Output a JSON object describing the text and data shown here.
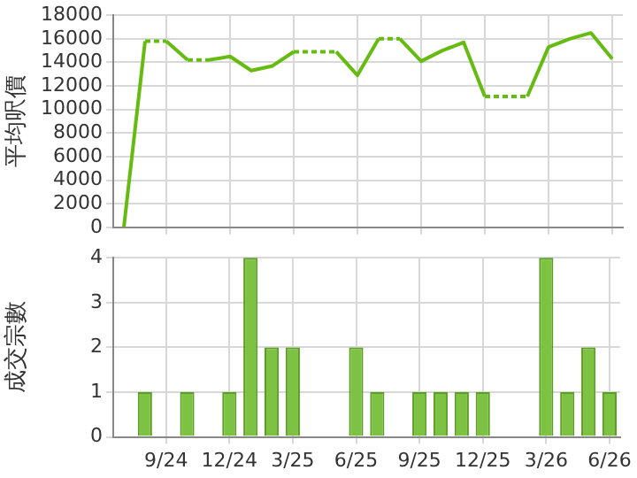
{
  "chart_data": [
    {
      "type": "line",
      "ylabel": "平均呎價",
      "categories": [
        null,
        null,
        null,
        null,
        null,
        null,
        null,
        null,
        null,
        null,
        null,
        null,
        null,
        null,
        null,
        null,
        null,
        null,
        null,
        null,
        null,
        null,
        null,
        null
      ],
      "series": [
        {
          "color": "#66bb11",
          "values": [
            0,
            15800,
            15800,
            14200,
            14200,
            14500,
            13300,
            13700,
            14900,
            14900,
            14900,
            12900,
            16000,
            16000,
            14100,
            15000,
            15700,
            11100,
            11100,
            11100,
            15300,
            16000,
            16500,
            14300
          ]
        }
      ],
      "ylim": [
        0,
        18000
      ],
      "yticks": [
        0,
        2000,
        4000,
        6000,
        8000,
        10000,
        12000,
        14000,
        16000,
        18000
      ],
      "grid": true,
      "marker": "none",
      "tick_labels": "y"
    },
    {
      "type": "bar",
      "ylabel": "成交宗數",
      "categories": [
        null,
        null,
        "9/24",
        null,
        null,
        "12/24",
        null,
        null,
        "3/25",
        null,
        null,
        "6/25",
        null,
        null,
        "9/25",
        null,
        null,
        "12/25",
        null,
        null,
        "3/26",
        null,
        null,
        "6/26"
      ],
      "values": [
        0,
        1,
        0,
        1,
        0,
        1,
        4,
        2,
        2,
        0,
        0,
        2,
        1,
        0,
        1,
        1,
        1,
        1,
        0,
        0,
        4,
        1,
        2,
        1
      ],
      "color": "#7dc242",
      "ylim": [
        0,
        4
      ],
      "yticks": [
        0,
        1,
        2,
        3,
        4
      ],
      "grid": true
    }
  ]
}
